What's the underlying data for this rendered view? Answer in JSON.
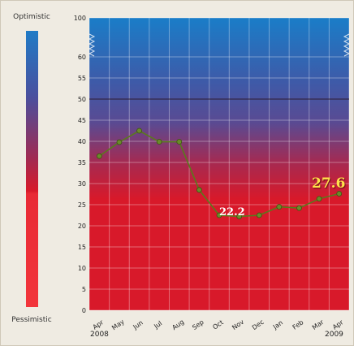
{
  "gauge": {
    "top_label": "Optimistic",
    "bottom_label": "Pessimistic"
  },
  "chart_data": {
    "type": "line",
    "categories": [
      "Apr",
      "May",
      "Jun",
      "Jul",
      "Aug",
      "Sep",
      "Oct",
      "Nov",
      "Dec",
      "Jan",
      "Feb",
      "Mar",
      "Apr"
    ],
    "year_labels": {
      "start": "2008",
      "end": "2009"
    },
    "series": [
      {
        "values": [
          36.5,
          39.8,
          42.5,
          39.9,
          39.9,
          28.5,
          22.5,
          22.2,
          22.5,
          24.5,
          24.2,
          26.4,
          27.6
        ]
      }
    ],
    "y_ticks": [
      "0",
      "5",
      "10",
      "15",
      "20",
      "25",
      "30",
      "35",
      "40",
      "45",
      "50",
      "55",
      "60",
      "100"
    ],
    "ylim": [
      0,
      100
    ],
    "axis_break": "between 60 and 100",
    "data_labels": [
      {
        "index": 7,
        "text": "22.2",
        "color": "#ffffff"
      },
      {
        "index": 12,
        "text": "27.6",
        "color": "#ffe14a"
      }
    ],
    "grid": true,
    "reference_line": 50,
    "line_color": "#5a7a1c",
    "background_gradient": [
      "#1a7dc8",
      "#4b4c9c",
      "#d8192a"
    ]
  }
}
